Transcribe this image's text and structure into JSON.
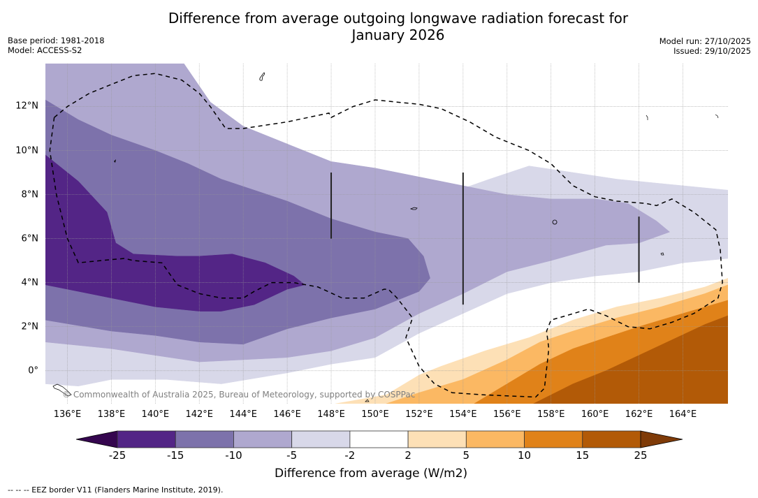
{
  "header": {
    "title_line1": "Difference from average outgoing longwave radiation forecast for",
    "title_line2": "January 2026",
    "base_period": "Base period: 1981-2018",
    "model": "Model: ACCESS-S2",
    "model_run": "Model run: 27/10/2025",
    "issued": "Issued: 29/10/2025"
  },
  "map": {
    "extent": {
      "lon_min": 135.0,
      "lon_max": 166.05,
      "lat_min": -1.5,
      "lat_max": 13.95
    },
    "x_ticks": [
      {
        "lon": 136,
        "label": "136°E"
      },
      {
        "lon": 138,
        "label": "138°E"
      },
      {
        "lon": 140,
        "label": "140°E"
      },
      {
        "lon": 142,
        "label": "142°E"
      },
      {
        "lon": 144,
        "label": "144°E"
      },
      {
        "lon": 146,
        "label": "146°E"
      },
      {
        "lon": 148,
        "label": "148°E"
      },
      {
        "lon": 150,
        "label": "150°E"
      },
      {
        "lon": 152,
        "label": "152°E"
      },
      {
        "lon": 154,
        "label": "154°E"
      },
      {
        "lon": 156,
        "label": "156°E"
      },
      {
        "lon": 158,
        "label": "158°E"
      },
      {
        "lon": 160,
        "label": "160°E"
      },
      {
        "lon": 162,
        "label": "162°E"
      },
      {
        "lon": 164,
        "label": "164°E"
      }
    ],
    "y_ticks": [
      {
        "lat": 12,
        "label": "12°N"
      },
      {
        "lat": 10,
        "label": "10°N"
      },
      {
        "lat": 8,
        "label": "8°N"
      },
      {
        "lat": 6,
        "label": "6°N"
      },
      {
        "lat": 4,
        "label": "4°N"
      },
      {
        "lat": 2,
        "label": "2°N"
      },
      {
        "lat": 0,
        "label": "0°"
      }
    ],
    "copyright": "© Commonwealth of Australia 2025, Bureau of Meteorology, supported by COSPPac",
    "bands": [
      {
        "name": "-5 to -2",
        "color": "#d8d8e9",
        "poly": [
          [
            135,
            13.95
          ],
          [
            141.3,
            13.95
          ],
          [
            142.5,
            12.2
          ],
          [
            144,
            11.1
          ],
          [
            146,
            10.3
          ],
          [
            148,
            9.4
          ],
          [
            150,
            8.5
          ],
          [
            151.5,
            8.3
          ],
          [
            153.5,
            8.1
          ],
          [
            155.2,
            8.7
          ],
          [
            157,
            9.3
          ],
          [
            159,
            9.0
          ],
          [
            161,
            8.7
          ],
          [
            163,
            8.5
          ],
          [
            166.05,
            8.2
          ],
          [
            166.05,
            5.1
          ],
          [
            164,
            4.9
          ],
          [
            162,
            4.5
          ],
          [
            160,
            4.3
          ],
          [
            158,
            4.0
          ],
          [
            156,
            3.5
          ],
          [
            154,
            2.6
          ],
          [
            152,
            1.7
          ],
          [
            150,
            0.6
          ],
          [
            148,
            0.3
          ],
          [
            146,
            -0.1
          ],
          [
            143,
            -0.6
          ],
          [
            140.5,
            -0.4
          ],
          [
            138,
            -0.4
          ],
          [
            136.5,
            -0.7
          ],
          [
            135,
            -0.6
          ]
        ]
      },
      {
        "name": "-10 to -5",
        "color": "#afa8cf",
        "poly": [
          [
            135,
            13.95
          ],
          [
            141.3,
            13.95
          ],
          [
            142.5,
            12.2
          ],
          [
            144,
            11.1
          ],
          [
            146,
            10.3
          ],
          [
            147,
            9.9
          ],
          [
            148,
            9.5
          ],
          [
            150,
            9.2
          ],
          [
            152,
            8.8
          ],
          [
            154,
            8.4
          ],
          [
            156,
            8.0
          ],
          [
            158,
            7.8
          ],
          [
            160,
            7.8
          ],
          [
            161.5,
            7.6
          ],
          [
            162.8,
            6.8
          ],
          [
            163.4,
            6.3
          ],
          [
            162,
            5.8
          ],
          [
            160.5,
            5.7
          ],
          [
            158,
            5.0
          ],
          [
            156,
            4.5
          ],
          [
            154,
            3.5
          ],
          [
            152,
            2.6
          ],
          [
            150,
            1.5
          ],
          [
            148,
            0.9
          ],
          [
            146,
            0.6
          ],
          [
            144,
            0.5
          ],
          [
            142,
            0.4
          ],
          [
            140,
            0.7
          ],
          [
            138,
            1.0
          ],
          [
            135,
            1.3
          ]
        ]
      },
      {
        "name": "-15 to -10",
        "color": "#7d72ab",
        "poly": [
          [
            135,
            12.3
          ],
          [
            136.5,
            11.4
          ],
          [
            138,
            10.7
          ],
          [
            140,
            10.0
          ],
          [
            141.5,
            9.4
          ],
          [
            143,
            8.7
          ],
          [
            144.5,
            8.2
          ],
          [
            146,
            7.7
          ],
          [
            147,
            7.3
          ],
          [
            148,
            6.9
          ],
          [
            150,
            6.3
          ],
          [
            151.5,
            6.0
          ],
          [
            152.2,
            5.2
          ],
          [
            152.5,
            4.2
          ],
          [
            152,
            3.6
          ],
          [
            150,
            2.8
          ],
          [
            148,
            2.4
          ],
          [
            146,
            1.9
          ],
          [
            144,
            1.2
          ],
          [
            142,
            1.3
          ],
          [
            140,
            1.6
          ],
          [
            138,
            1.8
          ],
          [
            135,
            2.3
          ]
        ]
      },
      {
        "name": "-25 to -15",
        "color": "#532586",
        "poly": [
          [
            135,
            9.8
          ],
          [
            136.5,
            8.6
          ],
          [
            137.8,
            7.2
          ],
          [
            138.2,
            5.8
          ],
          [
            139,
            5.3
          ],
          [
            141,
            5.2
          ],
          [
            142,
            5.2
          ],
          [
            143.5,
            5.3
          ],
          [
            145,
            4.9
          ],
          [
            146.3,
            4.3
          ],
          [
            146.8,
            3.9
          ],
          [
            146,
            3.7
          ],
          [
            144.5,
            3.0
          ],
          [
            143,
            2.7
          ],
          [
            142,
            2.7
          ],
          [
            140,
            2.9
          ],
          [
            138,
            3.3
          ],
          [
            136.5,
            3.6
          ],
          [
            135,
            3.9
          ]
        ]
      },
      {
        "name": "2 to 5",
        "color": "#fde0b6",
        "poly": [
          [
            148.2,
            -1.5
          ],
          [
            150.5,
            -1.1
          ],
          [
            152,
            -0.2
          ],
          [
            153,
            0.2
          ],
          [
            155,
            0.9
          ],
          [
            157,
            1.5
          ],
          [
            159,
            2.3
          ],
          [
            161,
            2.9
          ],
          [
            163,
            3.3
          ],
          [
            165,
            3.8
          ],
          [
            166.05,
            4.2
          ],
          [
            166.05,
            -1.5
          ]
        ]
      },
      {
        "name": "5 to 10",
        "color": "#fbb863",
        "poly": [
          [
            150.5,
            -1.5
          ],
          [
            152,
            -1.0
          ],
          [
            154,
            -0.4
          ],
          [
            156,
            0.5
          ],
          [
            157.5,
            1.3
          ],
          [
            159,
            1.8
          ],
          [
            161,
            2.4
          ],
          [
            163,
            2.9
          ],
          [
            165,
            3.5
          ],
          [
            166.05,
            3.9
          ],
          [
            166.05,
            -1.5
          ]
        ]
      },
      {
        "name": "10 to 15",
        "color": "#e08219",
        "poly": [
          [
            154.5,
            -1.5
          ],
          [
            156,
            -0.6
          ],
          [
            157.5,
            0.3
          ],
          [
            159,
            1.0
          ],
          [
            160.5,
            1.5
          ],
          [
            162,
            2.0
          ],
          [
            164,
            2.6
          ],
          [
            166.05,
            3.2
          ],
          [
            166.05,
            -1.5
          ]
        ]
      },
      {
        "name": "15 to 25",
        "color": "#b25a07",
        "poly": [
          [
            157.2,
            -1.5
          ],
          [
            159,
            -0.6
          ],
          [
            160.5,
            0.0
          ],
          [
            162,
            0.7
          ],
          [
            163.5,
            1.4
          ],
          [
            165,
            2.1
          ],
          [
            166.05,
            2.5
          ],
          [
            166.05,
            -1.5
          ]
        ]
      }
    ],
    "eez_borders": [
      [
        [
          135.4,
          11.5
        ],
        [
          136,
          12.0
        ],
        [
          137,
          12.6
        ],
        [
          138,
          13.0
        ],
        [
          139,
          13.4
        ],
        [
          140,
          13.5
        ],
        [
          141.2,
          13.2
        ],
        [
          142,
          12.6
        ],
        [
          142.5,
          12.0
        ],
        [
          143.2,
          11.0
        ],
        [
          144,
          11.0
        ],
        [
          146,
          11.3
        ],
        [
          147.9,
          11.7
        ],
        [
          148,
          11.5
        ],
        [
          149,
          12.0
        ],
        [
          150,
          12.3
        ],
        [
          151,
          12.2
        ],
        [
          152,
          12.1
        ],
        [
          153,
          11.9
        ],
        [
          154.3,
          11.3
        ],
        [
          155.5,
          10.6
        ],
        [
          157,
          10.0
        ],
        [
          158,
          9.4
        ],
        [
          159,
          8.4
        ],
        [
          160,
          7.9
        ],
        [
          161,
          7.7
        ],
        [
          162.3,
          7.6
        ],
        [
          162.8,
          7.5
        ],
        [
          163.5,
          7.8
        ],
        [
          164.5,
          7.2
        ],
        [
          165.5,
          6.4
        ],
        [
          165.7,
          5.5
        ],
        [
          165.8,
          4.0
        ],
        [
          165.6,
          3.3
        ],
        [
          164.5,
          2.6
        ],
        [
          163.5,
          2.2
        ],
        [
          162.5,
          1.9
        ],
        [
          161.5,
          2.0
        ],
        [
          160.5,
          2.5
        ],
        [
          159.7,
          2.8
        ],
        [
          158.7,
          2.5
        ],
        [
          158.0,
          2.3
        ],
        [
          157.8,
          1.8
        ],
        [
          157.9,
          1.0
        ],
        [
          157.7,
          -0.8
        ],
        [
          157.3,
          -1.2
        ],
        [
          155,
          -1.1
        ],
        [
          153.5,
          -1.0
        ],
        [
          152.7,
          -0.6
        ],
        [
          152,
          0.2
        ],
        [
          151.4,
          1.5
        ],
        [
          151.7,
          2.4
        ],
        [
          151,
          3.3
        ],
        [
          150.6,
          3.7
        ],
        [
          150.4,
          3.7
        ],
        [
          149.5,
          3.3
        ],
        [
          148.5,
          3.3
        ],
        [
          147.4,
          3.8
        ],
        [
          146.3,
          4.0
        ],
        [
          145.3,
          4.0
        ],
        [
          144.5,
          3.6
        ],
        [
          144,
          3.3
        ],
        [
          143,
          3.3
        ],
        [
          142,
          3.5
        ],
        [
          141,
          3.9
        ],
        [
          140.3,
          4.9
        ],
        [
          139,
          5.0
        ],
        [
          138.6,
          5.1
        ],
        [
          137.5,
          5.0
        ],
        [
          136.5,
          4.9
        ],
        [
          136,
          6.0
        ],
        [
          135.5,
          8.0
        ],
        [
          135.2,
          10.0
        ],
        [
          135.4,
          11.5
        ]
      ]
    ],
    "boundary_lines": [
      {
        "lon": 148,
        "lat_from": 6.0,
        "lat_to": 9.0
      },
      {
        "lon": 154,
        "lat_from": 3.0,
        "lat_to": 9.0
      },
      {
        "lon": 162,
        "lat_from": 4.0,
        "lat_to": 7.0
      }
    ]
  },
  "colorbar": {
    "label": "Difference from average (W/m2)",
    "ticks": [
      "-25",
      "-15",
      "-10",
      "-5",
      "-2",
      "2",
      "5",
      "10",
      "15",
      "25"
    ],
    "under_color": "#35064f",
    "over_color": "#7f3b08",
    "segments": [
      {
        "from": -25,
        "to": -15,
        "color": "#532586"
      },
      {
        "from": -15,
        "to": -10,
        "color": "#7d72ab"
      },
      {
        "from": -10,
        "to": -5,
        "color": "#afa8cf"
      },
      {
        "from": -5,
        "to": -2,
        "color": "#d8d8e9"
      },
      {
        "from": -2,
        "to": 2,
        "color": "#ffffff"
      },
      {
        "from": 2,
        "to": 5,
        "color": "#fde0b6"
      },
      {
        "from": 5,
        "to": 10,
        "color": "#fbb863"
      },
      {
        "from": 10,
        "to": 15,
        "color": "#e08219"
      },
      {
        "from": 15,
        "to": 25,
        "color": "#b25a07"
      }
    ]
  },
  "footer": {
    "eez_note": "--  --  -- EEZ border V11 (Flanders Marine Institute, 2019)."
  }
}
